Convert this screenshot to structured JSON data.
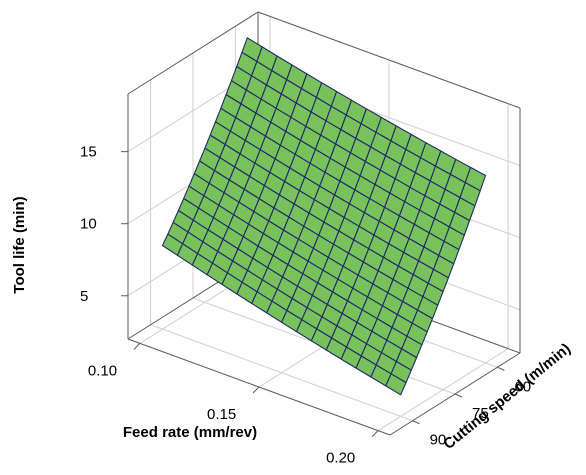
{
  "chart_data": {
    "type": "surface",
    "title": "",
    "xlabel": "Feed rate (mm/rev)",
    "ylabel": "Cutting speed (m/min)",
    "zlabel": "Tool life (min)",
    "x_ticks": [
      "0.10",
      "0.15",
      "0.20"
    ],
    "y_ticks": [
      "60",
      "75",
      "90"
    ],
    "z_ticks": [
      "5",
      "10",
      "15"
    ],
    "xlim": [
      0.095,
      0.205
    ],
    "ylim": [
      52,
      98
    ],
    "zlim": [
      2,
      19
    ],
    "grid": true,
    "surface_color": "#78c15b",
    "mesh_color": "#1e2a6a",
    "corner_values": [
      {
        "feed_rate": 0.1,
        "cutting_speed": 60,
        "tool_life": 18.5
      },
      {
        "feed_rate": 0.1,
        "cutting_speed": 90,
        "tool_life": 7.8
      },
      {
        "feed_rate": 0.2,
        "cutting_speed": 60,
        "tool_life": 15.0
      },
      {
        "feed_rate": 0.2,
        "cutting_speed": 90,
        "tool_life": 3.5
      }
    ]
  }
}
